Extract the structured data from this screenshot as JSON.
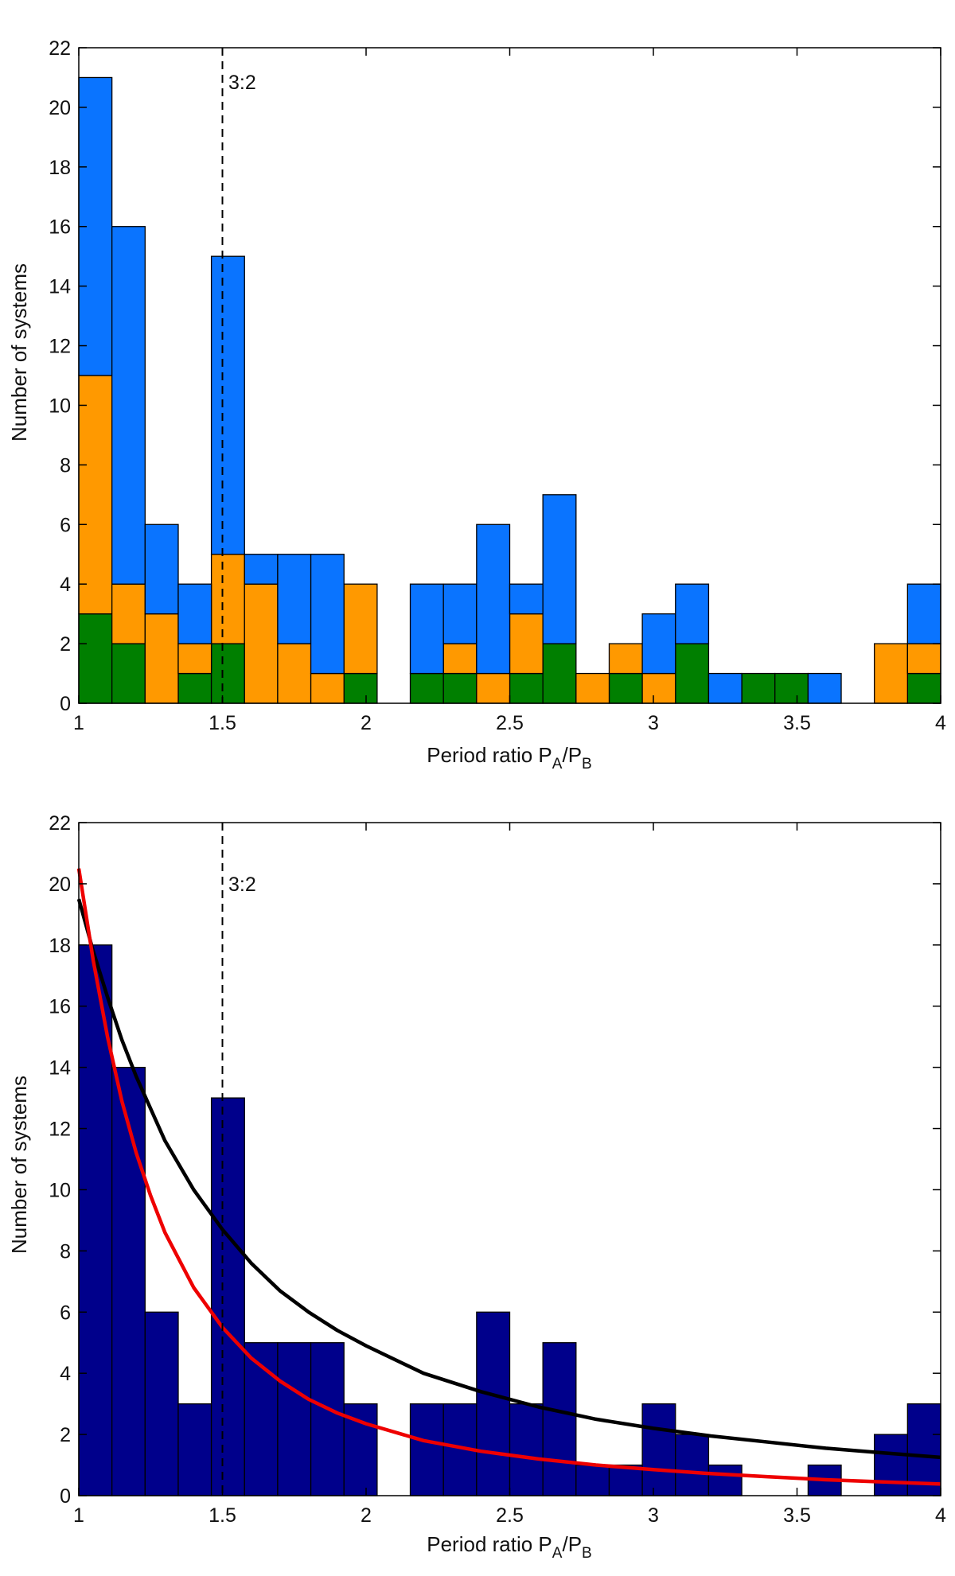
{
  "chart_data": [
    {
      "type": "bar",
      "stacked": true,
      "bin_edges": [
        1.0,
        1.1154,
        1.2308,
        1.3462,
        1.4615,
        1.5769,
        1.6923,
        1.8077,
        1.9231,
        2.0385,
        2.1538,
        2.2692,
        2.3846,
        2.5,
        2.6154,
        2.7308,
        2.8462,
        2.9615,
        3.0769,
        3.1923,
        3.3077,
        3.4231,
        3.5385,
        3.6538,
        3.7692,
        3.8846,
        4.0
      ],
      "series": [
        {
          "name": "green",
          "color": "#007f00",
          "values": [
            3,
            2,
            0,
            1,
            2,
            0,
            0,
            0,
            1,
            0,
            1,
            1,
            0,
            1,
            2,
            0,
            1,
            0,
            2,
            0,
            1,
            1,
            0,
            0,
            0,
            1
          ]
        },
        {
          "name": "orange",
          "color": "#ff9900",
          "values": [
            8,
            2,
            3,
            1,
            3,
            4,
            2,
            1,
            3,
            0,
            0,
            1,
            1,
            2,
            0,
            1,
            1,
            1,
            0,
            0,
            0,
            0,
            0,
            0,
            2,
            1
          ]
        },
        {
          "name": "blue",
          "color": "#0a74ff",
          "values": [
            10,
            12,
            3,
            2,
            10,
            1,
            3,
            4,
            0,
            0,
            3,
            2,
            5,
            1,
            5,
            0,
            0,
            2,
            2,
            1,
            0,
            0,
            1,
            0,
            0,
            2
          ]
        }
      ],
      "xlabel_main": "Period ratio P",
      "xlabel_sub1": "A",
      "xlabel_mid": "/P",
      "xlabel_sub2": "B",
      "ylabel": "Number of systems",
      "xlim": [
        1,
        4
      ],
      "ylim": [
        0,
        22
      ],
      "xticks": [
        "1",
        "1.5",
        "2",
        "2.5",
        "3",
        "3.5",
        "4"
      ],
      "xtick_values": [
        1,
        1.5,
        2,
        2.5,
        3,
        3.5,
        4
      ],
      "yticks": [
        "0",
        "2",
        "4",
        "6",
        "8",
        "10",
        "12",
        "14",
        "16",
        "18",
        "20",
        "22"
      ],
      "ytick_values": [
        0,
        2,
        4,
        6,
        8,
        10,
        12,
        14,
        16,
        18,
        20,
        22
      ],
      "reference_line": {
        "x": 1.5,
        "label": "3:2"
      }
    },
    {
      "type": "bar",
      "bin_edges": [
        1.0,
        1.1154,
        1.2308,
        1.3462,
        1.4615,
        1.5769,
        1.6923,
        1.8077,
        1.9231,
        2.0385,
        2.1538,
        2.2692,
        2.3846,
        2.5,
        2.6154,
        2.7308,
        2.8462,
        2.9615,
        3.0769,
        3.1923,
        3.3077,
        3.4231,
        3.5385,
        3.6538,
        3.7692,
        3.8846,
        4.0
      ],
      "values": [
        18,
        14,
        6,
        3,
        13,
        5,
        5,
        5,
        3,
        0,
        3,
        3,
        6,
        3,
        5,
        1,
        1,
        3,
        2,
        1,
        0,
        0,
        1,
        0,
        2,
        3
      ],
      "bar_color": "#00008b",
      "curves": [
        {
          "name": "black fit",
          "color": "#000000",
          "x": [
            1.0,
            1.05,
            1.1,
            1.15,
            1.2,
            1.3,
            1.4,
            1.5,
            1.6,
            1.7,
            1.8,
            1.9,
            2.0,
            2.2,
            2.4,
            2.6,
            2.8,
            3.0,
            3.2,
            3.4,
            3.6,
            3.8,
            4.0
          ],
          "y": [
            19.5,
            17.8,
            16.3,
            14.9,
            13.7,
            11.6,
            10.0,
            8.7,
            7.6,
            6.7,
            6.0,
            5.4,
            4.9,
            4.0,
            3.4,
            2.9,
            2.5,
            2.2,
            1.95,
            1.75,
            1.55,
            1.4,
            1.25
          ]
        },
        {
          "name": "red fit",
          "color": "#ee0000",
          "x": [
            1.0,
            1.05,
            1.1,
            1.15,
            1.2,
            1.25,
            1.3,
            1.4,
            1.5,
            1.6,
            1.7,
            1.8,
            1.9,
            2.0,
            2.2,
            2.4,
            2.6,
            2.8,
            3.0,
            3.2,
            3.4,
            3.6,
            3.8,
            4.0
          ],
          "y": [
            20.5,
            17.5,
            15.0,
            12.9,
            11.2,
            9.8,
            8.6,
            6.8,
            5.5,
            4.5,
            3.75,
            3.15,
            2.7,
            2.35,
            1.8,
            1.45,
            1.2,
            1.0,
            0.85,
            0.72,
            0.62,
            0.52,
            0.45,
            0.38
          ]
        }
      ],
      "xlabel_main": "Period ratio P",
      "xlabel_sub1": "A",
      "xlabel_mid": "/P",
      "xlabel_sub2": "B",
      "ylabel": "Number of systems",
      "xlim": [
        1,
        4
      ],
      "ylim": [
        0,
        22
      ],
      "xticks": [
        "1",
        "1.5",
        "2",
        "2.5",
        "3",
        "3.5",
        "4"
      ],
      "xtick_values": [
        1,
        1.5,
        2,
        2.5,
        3,
        3.5,
        4
      ],
      "yticks": [
        "0",
        "2",
        "4",
        "6",
        "8",
        "10",
        "12",
        "14",
        "16",
        "18",
        "20",
        "22"
      ],
      "ytick_values": [
        0,
        2,
        4,
        6,
        8,
        10,
        12,
        14,
        16,
        18,
        20,
        22
      ],
      "reference_line": {
        "x": 1.5,
        "label": "3:2"
      }
    }
  ]
}
